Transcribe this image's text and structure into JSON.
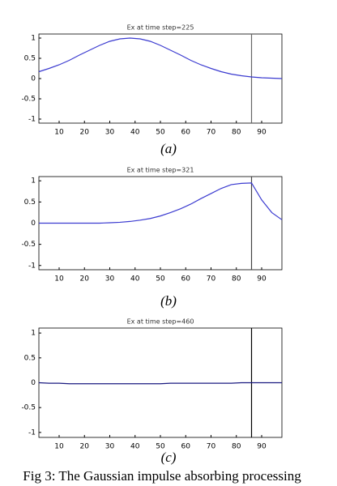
{
  "chart_data": [
    {
      "type": "line",
      "title": "Ex at time step=225",
      "label": "(a)",
      "x": [
        2,
        6,
        10,
        14,
        18,
        22,
        26,
        30,
        34,
        38,
        42,
        46,
        50,
        54,
        58,
        62,
        66,
        70,
        74,
        78,
        82,
        86,
        90,
        94,
        98
      ],
      "series": [
        {
          "color": "#3b3bd0",
          "values": [
            0.17,
            0.25,
            0.34,
            0.45,
            0.58,
            0.7,
            0.82,
            0.92,
            0.98,
            1,
            0.98,
            0.92,
            0.82,
            0.7,
            0.58,
            0.45,
            0.34,
            0.25,
            0.17,
            0.11,
            0.07,
            0.04,
            0.02,
            0.01,
            0
          ]
        }
      ],
      "xlim": [
        2,
        98
      ],
      "ylim": [
        -1.1,
        1.1
      ],
      "xticks": [
        10,
        20,
        30,
        40,
        50,
        60,
        70,
        80,
        90
      ],
      "yticks": [
        -1,
        -0.5,
        0,
        0.5,
        1
      ],
      "vline": 86,
      "vline_color": "#666666"
    },
    {
      "type": "line",
      "title": "Ex at time step=321",
      "label": "(b)",
      "x": [
        2,
        6,
        10,
        14,
        18,
        22,
        26,
        30,
        34,
        38,
        42,
        46,
        50,
        54,
        58,
        62,
        66,
        70,
        74,
        78,
        82,
        86,
        90,
        94,
        98
      ],
      "series": [
        {
          "color": "#3b3bd0",
          "values": [
            0,
            0,
            0,
            0,
            0,
            0,
            0,
            0.01,
            0.02,
            0.04,
            0.07,
            0.11,
            0.17,
            0.25,
            0.34,
            0.45,
            0.58,
            0.7,
            0.82,
            0.91,
            0.94,
            0.95,
            0.55,
            0.25,
            0.08
          ]
        }
      ],
      "xlim": [
        2,
        98
      ],
      "ylim": [
        -1.1,
        1.1
      ],
      "xticks": [
        10,
        20,
        30,
        40,
        50,
        60,
        70,
        80,
        90
      ],
      "yticks": [
        -1,
        -0.5,
        0,
        0.5,
        1
      ],
      "vline": 86,
      "vline_color": "#444444"
    },
    {
      "type": "line",
      "title": "Ex at time step=460",
      "label": "(c)",
      "x": [
        2,
        6,
        10,
        14,
        18,
        22,
        26,
        30,
        34,
        38,
        42,
        46,
        50,
        54,
        58,
        62,
        66,
        70,
        74,
        78,
        82,
        86,
        90,
        94,
        98
      ],
      "series": [
        {
          "color": "#1a1a80",
          "values": [
            0,
            -0.01,
            -0.01,
            -0.02,
            -0.02,
            -0.02,
            -0.02,
            -0.02,
            -0.02,
            -0.02,
            -0.02,
            -0.02,
            -0.02,
            -0.01,
            -0.01,
            -0.01,
            -0.01,
            -0.01,
            -0.01,
            -0.01,
            0,
            0,
            0,
            0,
            0
          ]
        }
      ],
      "xlim": [
        2,
        98
      ],
      "ylim": [
        -1.1,
        1.1
      ],
      "xticks": [
        10,
        20,
        30,
        40,
        50,
        60,
        70,
        80,
        90
      ],
      "yticks": [
        -1,
        -0.5,
        0,
        0.5,
        1
      ],
      "vline": 86,
      "vline_color": "#000000"
    }
  ],
  "caption": "Fig 3: The Gaussian impulse absorbing processing"
}
